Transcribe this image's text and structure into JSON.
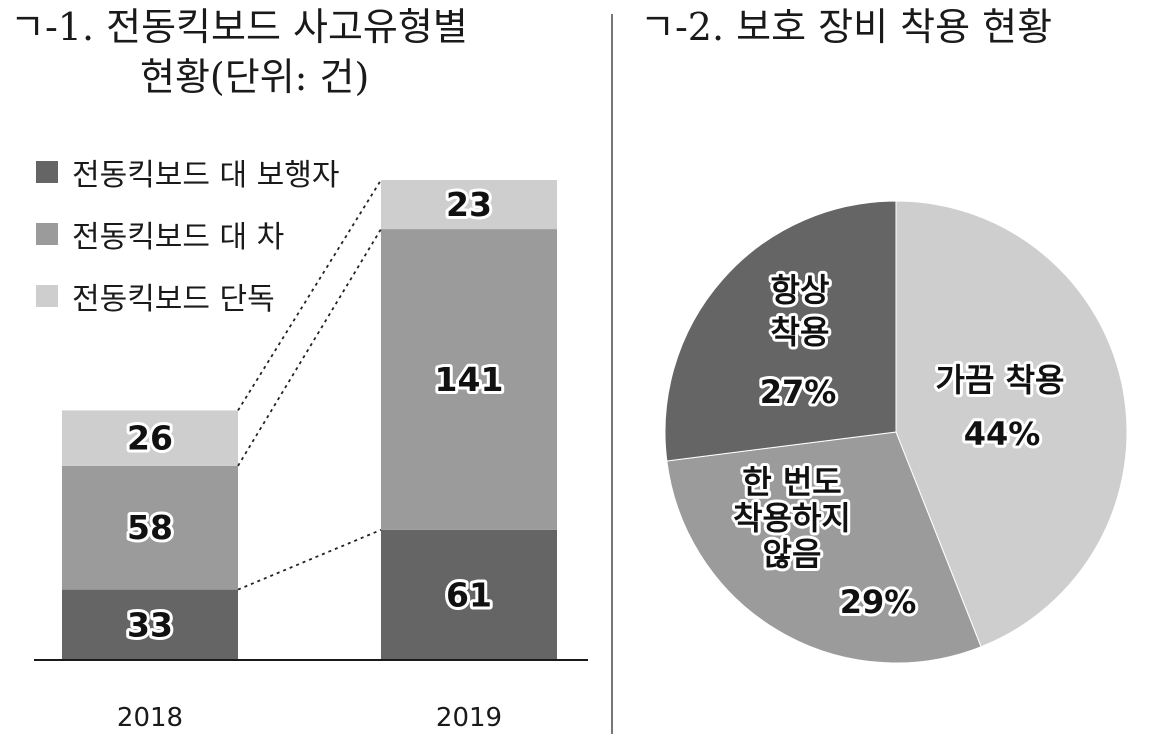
{
  "titles": {
    "left_line1": "ㄱ-1. 전동킥보드 사고유형별",
    "left_line2": "현황(단위: 건)",
    "right": "ㄱ-2. 보호 장비 착용 현황"
  },
  "colors": {
    "pedestrian": "#656565",
    "car": "#9b9b9b",
    "solo": "#cecece",
    "axis": "#1a1a1a"
  },
  "chart_data": [
    {
      "type": "bar",
      "stacked": true,
      "categories": [
        "2018",
        "2019"
      ],
      "series": [
        {
          "name": "전동킥보드 대 보행자",
          "values": [
            33,
            61
          ]
        },
        {
          "name": "전동킥보드 대 차",
          "values": [
            58,
            141
          ]
        },
        {
          "name": "전동킥보드 단독",
          "values": [
            26,
            23
          ]
        }
      ],
      "ylim": [
        0,
        225
      ],
      "legend": "top-left",
      "grid": false
    },
    {
      "type": "pie",
      "slices": [
        {
          "label": "가끔 착용",
          "lines": [
            "가끔 착용"
          ],
          "value": 44,
          "display": "44%"
        },
        {
          "label": "한 번도 착용하지 않음",
          "lines": [
            "한 번도",
            "착용하지",
            "않음"
          ],
          "value": 29,
          "display": "29%"
        },
        {
          "label": "항상 착용",
          "lines": [
            "항상",
            "착용"
          ],
          "value": 27,
          "display": "27%"
        }
      ]
    }
  ]
}
